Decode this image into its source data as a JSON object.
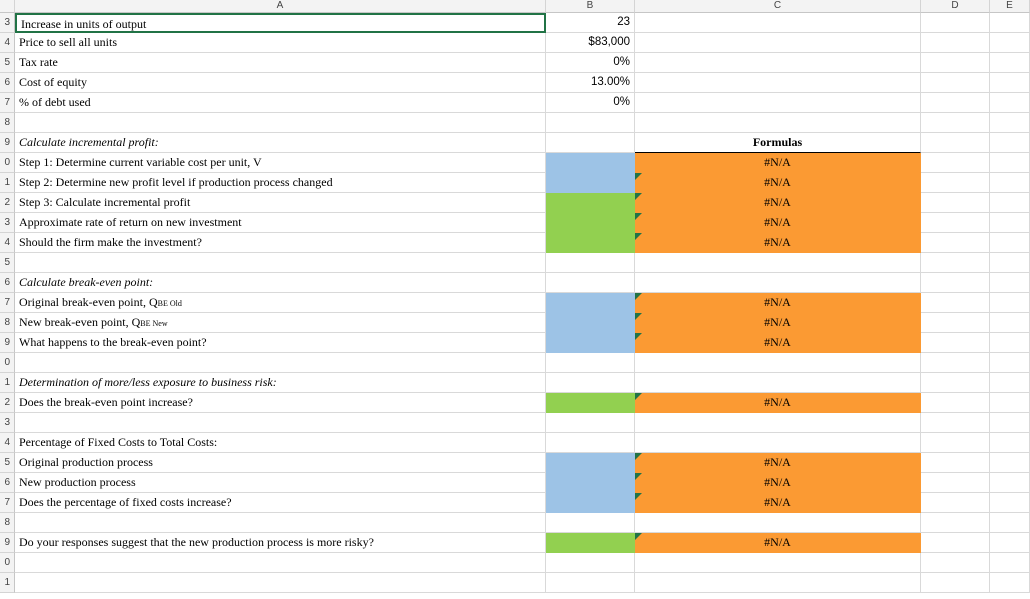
{
  "columns": [
    "A",
    "B",
    "C",
    "D",
    "E"
  ],
  "row_numbers": [
    "3",
    "4",
    "5",
    "6",
    "7",
    "8",
    "9",
    "0",
    "1",
    "2",
    "3",
    "4",
    "5",
    "6",
    "7",
    "8",
    "9",
    "0",
    "1",
    "2",
    "3",
    "4",
    "5",
    "6",
    "7",
    "8",
    "9",
    "0",
    "1"
  ],
  "inputs": [
    {
      "label": "Increase in units of output",
      "value": "23"
    },
    {
      "label": "Price to sell all units",
      "value": "$83,000"
    },
    {
      "label": "Tax rate",
      "value": "0%"
    },
    {
      "label": "Cost of equity",
      "value": "13.00%"
    },
    {
      "label": "% of debt used",
      "value": "0%"
    }
  ],
  "section1": {
    "title": "Calculate incremental profit:",
    "formulas_header": "Formulas",
    "steps": [
      {
        "label": "Step 1: Determine current variable cost per unit, V",
        "result": "#N/A"
      },
      {
        "label": "Step 2: Determine new profit level if production process changed",
        "result": "#N/A"
      },
      {
        "label": "Step 3: Calculate incremental profit",
        "result": "#N/A"
      },
      {
        "label": "Approximate rate of return on new investment",
        "result": "#N/A"
      },
      {
        "label": "Should the firm make the investment?",
        "result": "#N/A"
      }
    ]
  },
  "section2": {
    "title": "Calculate break-even point:",
    "rows": [
      {
        "label": "Original break-even point, Q",
        "sub": "BE Old",
        "result": "#N/A"
      },
      {
        "label": "New break-even point, Q",
        "sub": "BE New",
        "result": "#N/A"
      },
      {
        "label": "What happens to the break-even point?",
        "result": "#N/A"
      }
    ]
  },
  "section3": {
    "title": "Determination of more/less exposure to business risk:",
    "rows": [
      {
        "label": "Does the break-even point increase?",
        "result": "#N/A"
      }
    ]
  },
  "section4": {
    "title": "Percentage of Fixed Costs to Total Costs:",
    "rows": [
      {
        "label": "Original production process",
        "result": "#N/A"
      },
      {
        "label": "New production process",
        "result": "#N/A"
      },
      {
        "label": "Does the percentage of fixed costs increase?",
        "result": "#N/A"
      }
    ]
  },
  "section5": {
    "rows": [
      {
        "label": "Do your responses suggest that the new production process is more risky?",
        "result": "#N/A"
      }
    ]
  },
  "colors": {
    "blue": "#9dc3e6",
    "green": "#92d050",
    "orange": "#fb9a33",
    "grid": "#d9d9d9"
  }
}
